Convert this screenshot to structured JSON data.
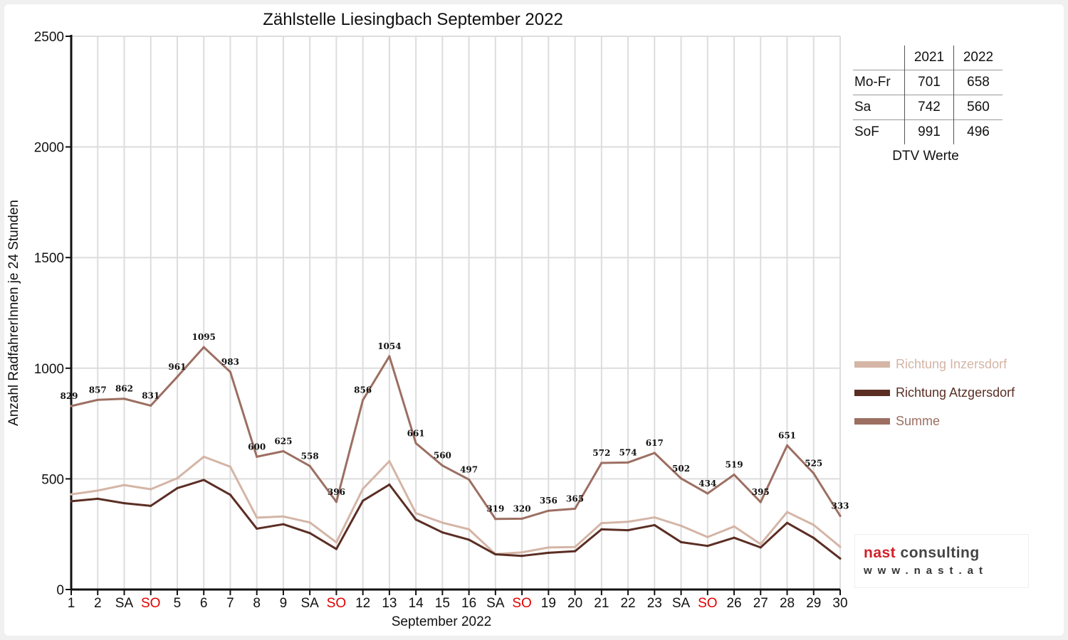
{
  "chart_data": {
    "type": "line",
    "title": "Zählstelle Liesingbach September 2022",
    "xlabel": "September 2022",
    "ylabel": "Anzahl RadfahrerInnen je 24 Stunden",
    "ylim": [
      0,
      2500
    ],
    "yticks": [
      "0",
      "500",
      "1000",
      "1500",
      "2000",
      "2500"
    ],
    "grid": true,
    "legend_position": "right",
    "categories": [
      "1",
      "2",
      "SA",
      "SO",
      "5",
      "6",
      "7",
      "8",
      "9",
      "SA",
      "SO",
      "12",
      "13",
      "14",
      "15",
      "16",
      "SA",
      "SO",
      "19",
      "20",
      "21",
      "22",
      "23",
      "SA",
      "SO",
      "26",
      "27",
      "28",
      "29",
      "30"
    ],
    "sunday_label_color": "#e00000",
    "series": [
      {
        "name": "Richtung Inzersdorf",
        "color": "#d4b5a6",
        "values": [
          430,
          447,
          472,
          453,
          503,
          600,
          555,
          325,
          330,
          303,
          213,
          455,
          580,
          345,
          302,
          272,
          160,
          168,
          190,
          192,
          300,
          306,
          326,
          288,
          237,
          285,
          205,
          350,
          292,
          193
        ]
      },
      {
        "name": "Richtung Atzgersdorf",
        "color": "#5b2e24",
        "values": [
          399,
          410,
          390,
          378,
          458,
          495,
          428,
          275,
          295,
          255,
          183,
          401,
          474,
          316,
          258,
          225,
          159,
          152,
          166,
          173,
          272,
          268,
          291,
          214,
          197,
          234,
          190,
          301,
          233,
          140
        ]
      },
      {
        "name": "Summe",
        "color": "#9c6f62",
        "values": [
          829,
          857,
          862,
          831,
          961,
          1095,
          983,
          600,
          625,
          558,
          396,
          856,
          1054,
          661,
          560,
          497,
          319,
          320,
          356,
          365,
          572,
          574,
          617,
          502,
          434,
          519,
          395,
          651,
          525,
          333
        ]
      }
    ]
  },
  "dtv": {
    "headers": [
      "2021",
      "2022"
    ],
    "rows": [
      {
        "label": "Mo-Fr",
        "v2021": "701",
        "v2022": "658"
      },
      {
        "label": "Sa",
        "v2021": "742",
        "v2022": "560"
      },
      {
        "label": "SoF",
        "v2021": "991",
        "v2022": "496"
      }
    ],
    "caption": "DTV Werte"
  },
  "logo": {
    "name_part1": "nast",
    "name_part2": " consulting",
    "url": "www.nast.at",
    "color_part1": "#d0202a",
    "color_part2": "#444444"
  }
}
